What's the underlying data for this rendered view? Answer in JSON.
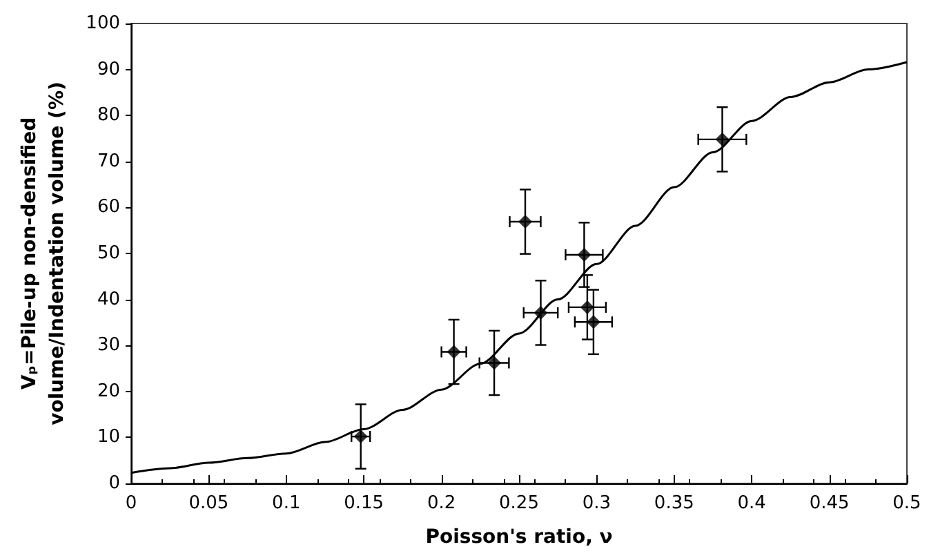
{
  "chart_data": {
    "type": "scatter",
    "xlabel": "Poisson's ratio, ν",
    "ylabel": "Vₚ=Pile-up non-densified\nvolume/Indentation volume (%)",
    "xlim": [
      0,
      0.5
    ],
    "xticks": [
      0,
      0.05,
      0.1,
      0.15,
      0.2,
      0.25,
      0.3,
      0.35,
      0.4,
      0.45,
      0.5
    ],
    "ylim": [
      0,
      100
    ],
    "yticks": [
      0,
      10,
      20,
      30,
      40,
      50,
      60,
      70,
      80,
      90,
      100
    ],
    "grid": false,
    "series": [
      {
        "color": "#000000",
        "marker": "diamond",
        "x": [
          0.148,
          0.208,
          0.234,
          0.254,
          0.264,
          0.292,
          0.294,
          0.298,
          0.381
        ],
        "values": [
          10.2,
          28.6,
          26.2,
          56.9,
          37.1,
          49.7,
          38.3,
          35.1,
          74.8
        ],
        "errors": [
          7,
          7,
          7,
          7,
          7,
          7,
          7,
          7,
          7
        ],
        "xerrors": [
          0.006,
          0.008,
          0.0095,
          0.01,
          0.011,
          0.012,
          0.012,
          0.012,
          0.0155
        ]
      },
      {
        "type": "line",
        "color": "#000000",
        "marker": "none",
        "line_style": "solid",
        "x": [
          0,
          0.025,
          0.05,
          0.075,
          0.1,
          0.125,
          0.15,
          0.175,
          0.2,
          0.225,
          0.25,
          0.275,
          0.3,
          0.325,
          0.35,
          0.375,
          0.4,
          0.425,
          0.45,
          0.475,
          0.5
        ],
        "values": [
          2.3,
          3.3,
          4.5,
          5.5,
          6.5,
          9,
          11.8,
          16,
          20.4,
          26,
          32.6,
          40,
          47.7,
          56,
          64.4,
          72,
          78.8,
          84,
          87.2,
          90,
          91.6
        ]
      }
    ]
  }
}
